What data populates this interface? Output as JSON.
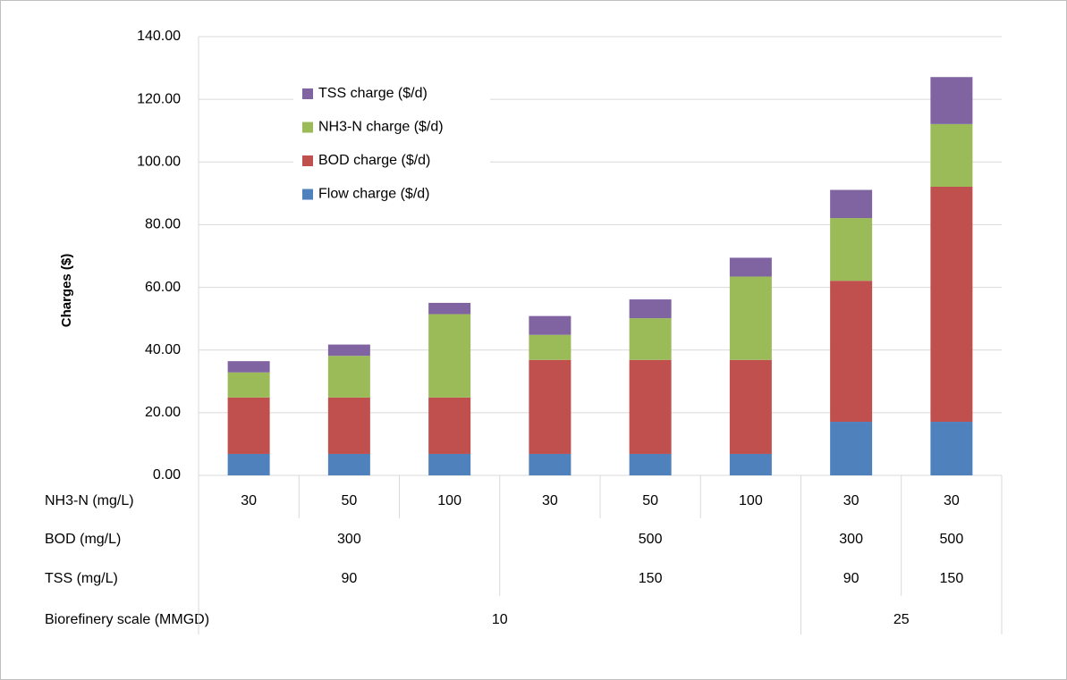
{
  "chart_data": {
    "type": "stacked_bar",
    "y_label": "Charges ($)",
    "categories": [
      "30",
      "50",
      "100",
      "30",
      "50",
      "100",
      "30",
      "30"
    ],
    "category_name": "NH3-N (mg/L)",
    "category_levels": [
      {
        "name": "BOD (mg/L)",
        "labels": [
          "300",
          null,
          null,
          "500",
          null,
          null,
          "300",
          "500"
        ]
      },
      {
        "name": "TSS (mg/L)",
        "labels": [
          "90",
          null,
          null,
          "150",
          null,
          null,
          "90",
          "150"
        ]
      },
      {
        "name": "Biorefinery scale (MMGD)",
        "labels": [
          "10",
          null,
          null,
          null,
          null,
          null,
          "25",
          null
        ]
      }
    ],
    "series": [
      {
        "name": "Flow charge ($/d)",
        "color": "#4f81bd",
        "values": [
          6.85,
          6.85,
          6.85,
          6.85,
          6.85,
          6.85,
          17.1,
          17.1
        ]
      },
      {
        "name": "BOD charge ($/d)",
        "color": "#c0504d",
        "values": [
          18,
          18,
          18,
          30,
          30,
          30,
          45,
          75
        ]
      },
      {
        "name": "NH3-N charge ($/d)",
        "color": "#9bbb59",
        "values": [
          8,
          13.3,
          26.6,
          8,
          13.3,
          26.6,
          20,
          20
        ]
      },
      {
        "name": "TSS charge ($/d)",
        "color": "#8064a2",
        "values": [
          3.6,
          3.6,
          3.6,
          6,
          6,
          6,
          9,
          15
        ]
      }
    ],
    "ylim": [
      0,
      140
    ],
    "yticks": [
      {
        "value": 0,
        "label": "0.00"
      },
      {
        "value": 20,
        "label": "20.00"
      },
      {
        "value": 40,
        "label": "40.00"
      },
      {
        "value": 60,
        "label": "60.00"
      },
      {
        "value": 80,
        "label": "80.00"
      },
      {
        "value": 100,
        "label": "100.00"
      },
      {
        "value": 120,
        "label": "120.00"
      },
      {
        "value": 140,
        "label": "140.00"
      }
    ],
    "grid": true,
    "legend": "top-left"
  }
}
